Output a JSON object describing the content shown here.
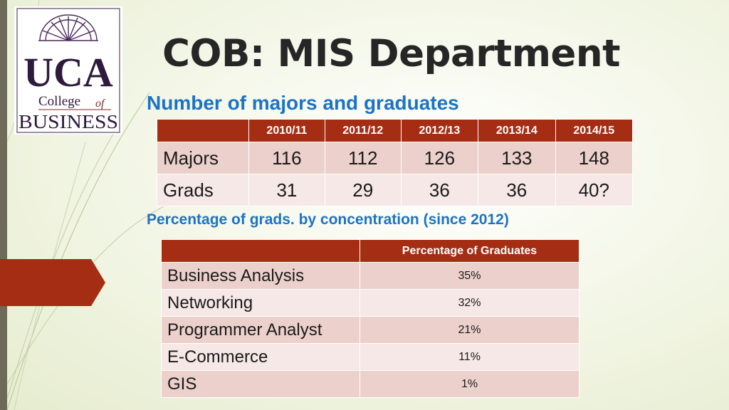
{
  "logo": {
    "line1": "UCA",
    "line2_a": "College",
    "line2_b": "of",
    "line3": "Business"
  },
  "header": {
    "title": "COB: MIS Department",
    "subtitle_majors": "Number of majors and graduates",
    "subtitle_concentration": "Percentage of grads. by concentration (since 2012)"
  },
  "majors_table": {
    "columns": [
      "2010/11",
      "2011/12",
      "2012/13",
      "2013/14",
      "2014/15"
    ],
    "rows": [
      {
        "label": "Majors",
        "values": [
          "116",
          "112",
          "126",
          "133",
          "148"
        ]
      },
      {
        "label": "Grads",
        "values": [
          "31",
          "29",
          "36",
          "36",
          "40?"
        ]
      }
    ]
  },
  "concentration_table": {
    "header": "Percentage of Graduates",
    "rows": [
      {
        "name": "Business Analysis",
        "percent": "35%"
      },
      {
        "name": "Networking",
        "percent": "32%"
      },
      {
        "name": "Programmer Analyst",
        "percent": "21%"
      },
      {
        "name": "E-Commerce",
        "percent": "11%"
      },
      {
        "name": "GIS",
        "percent": "1%"
      }
    ]
  },
  "colors": {
    "accent": "#a52d14",
    "subtitle": "#1c73c4",
    "title": "#262626",
    "logo_purple": "#4a2a5e"
  }
}
